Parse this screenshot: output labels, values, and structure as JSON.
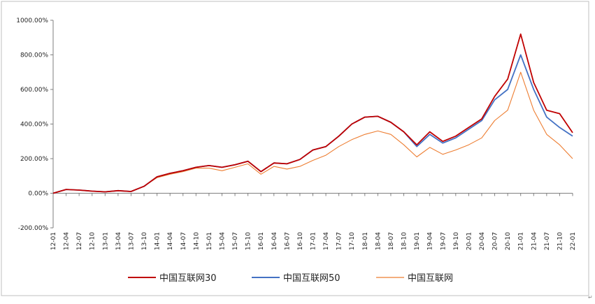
{
  "chart_data": {
    "type": "line",
    "title": "",
    "xlabel": "",
    "ylabel": "",
    "ylim": [
      -200,
      1000
    ],
    "y_tick_values": [
      -200,
      0,
      200,
      400,
      600,
      800,
      1000
    ],
    "y_ticks": [
      "-200.00%",
      "0.00%",
      "200.00%",
      "400.00%",
      "600.00%",
      "800.00%",
      "1000.00%"
    ],
    "x_ticks": [
      "12-01",
      "12-04",
      "12-07",
      "12-10",
      "13-01",
      "13-04",
      "13-07",
      "13-10",
      "14-01",
      "14-04",
      "14-07",
      "14-10",
      "15-01",
      "15-04",
      "15-07",
      "15-10",
      "16-01",
      "16-04",
      "16-07",
      "16-10",
      "17-01",
      "17-04",
      "17-07",
      "17-10",
      "18-01",
      "18-04",
      "18-07",
      "18-10",
      "19-01",
      "19-04",
      "19-07",
      "19-10",
      "20-01",
      "20-04",
      "20-07",
      "20-10",
      "21-01",
      "21-04",
      "21-07",
      "21-10",
      "22-01"
    ],
    "grid": false,
    "legend_position": "bottom",
    "series": [
      {
        "name": "中国互联网30",
        "color": "#C00000",
        "values": [
          0,
          22,
          18,
          12,
          8,
          15,
          10,
          40,
          95,
          115,
          130,
          150,
          160,
          150,
          165,
          185,
          125,
          175,
          170,
          195,
          250,
          270,
          330,
          400,
          440,
          445,
          410,
          355,
          280,
          355,
          300,
          330,
          380,
          430,
          560,
          660,
          920,
          640,
          480,
          460,
          350
        ]
      },
      {
        "name": "中国互联网50",
        "color": "#4472C4",
        "values": [
          0,
          22,
          18,
          12,
          8,
          15,
          10,
          40,
          95,
          115,
          130,
          150,
          160,
          150,
          165,
          185,
          125,
          175,
          170,
          195,
          250,
          270,
          330,
          400,
          440,
          445,
          410,
          355,
          270,
          340,
          290,
          320,
          370,
          420,
          540,
          600,
          800,
          600,
          440,
          380,
          330
        ]
      },
      {
        "name": "中国互联网",
        "color": "#ED7D31",
        "values": [
          0,
          22,
          18,
          12,
          8,
          15,
          10,
          40,
          90,
          110,
          125,
          145,
          145,
          130,
          150,
          170,
          110,
          155,
          140,
          155,
          190,
          220,
          270,
          310,
          340,
          360,
          340,
          280,
          210,
          265,
          225,
          250,
          280,
          320,
          420,
          480,
          700,
          480,
          340,
          280,
          200
        ]
      }
    ]
  }
}
